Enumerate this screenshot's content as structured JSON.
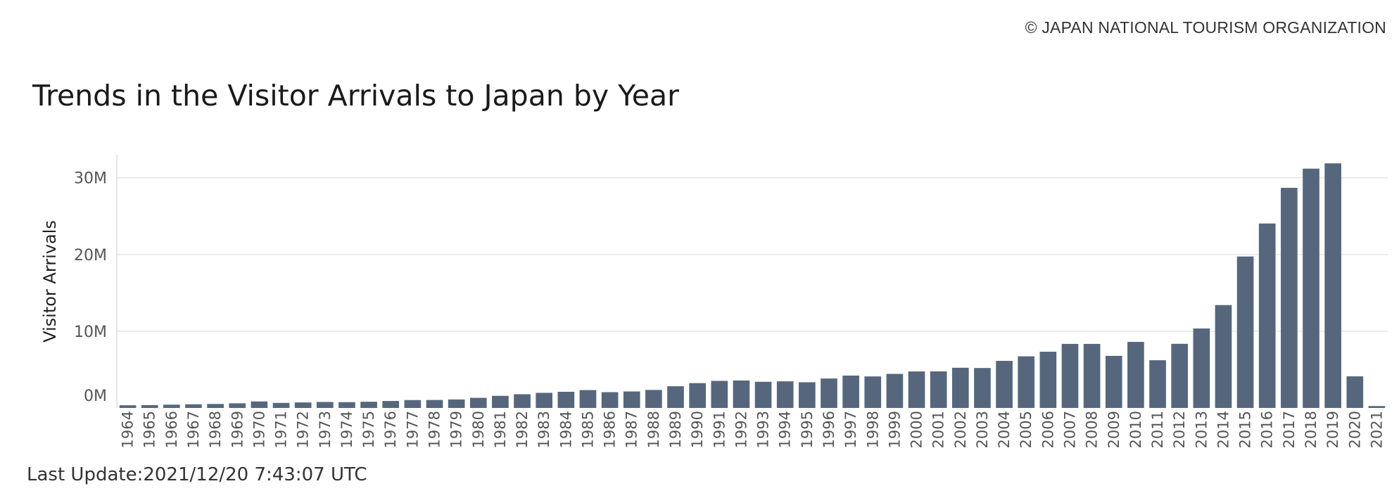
{
  "copyright": "© JAPAN NATIONAL TOURISM ORGANIZATION",
  "footer": "Last Update:2021/12/20 7:43:07 UTC",
  "colors": {
    "bar": "#56677d",
    "grid": "#e6e6e6",
    "axis": "#dddddd"
  },
  "chart_data": {
    "type": "bar",
    "title": "Trends in the Visitor Arrivals to Japan by Year",
    "xlabel": "",
    "ylabel": "Visitor Arrivals",
    "ylim": [
      0,
      33000000
    ],
    "yticks": [
      {
        "value": 0,
        "label": "0M"
      },
      {
        "value": 10000000,
        "label": "10M"
      },
      {
        "value": 20000000,
        "label": "20M"
      },
      {
        "value": 30000000,
        "label": "30M"
      }
    ],
    "grid": true,
    "categories": [
      "1964",
      "1965",
      "1966",
      "1967",
      "1968",
      "1969",
      "1970",
      "1971",
      "1972",
      "1973",
      "1974",
      "1975",
      "1976",
      "1977",
      "1978",
      "1979",
      "1980",
      "1981",
      "1982",
      "1983",
      "1984",
      "1985",
      "1986",
      "1987",
      "1988",
      "1989",
      "1990",
      "1991",
      "1992",
      "1993",
      "1994",
      "1995",
      "1996",
      "1997",
      "1998",
      "1999",
      "2000",
      "2001",
      "2002",
      "2003",
      "2004",
      "2005",
      "2006",
      "2007",
      "2008",
      "2009",
      "2010",
      "2011",
      "2012",
      "2013",
      "2014",
      "2015",
      "2016",
      "2017",
      "2018",
      "2019",
      "2020",
      "2021"
    ],
    "values": [
      350000,
      370000,
      430000,
      480000,
      520000,
      610000,
      850000,
      660000,
      720000,
      780000,
      760000,
      810000,
      910000,
      1030000,
      1040000,
      1110000,
      1320000,
      1580000,
      1790000,
      1970000,
      2110000,
      2330000,
      2060000,
      2150000,
      2350000,
      2830000,
      3240000,
      3530000,
      3580000,
      3410000,
      3470000,
      3350000,
      3840000,
      4220000,
      4110000,
      4440000,
      4760000,
      4770000,
      5240000,
      5210000,
      6140000,
      6730000,
      7330000,
      8350000,
      8350000,
      6790000,
      8610000,
      6220000,
      8360000,
      10360000,
      13410000,
      19740000,
      24040000,
      28690000,
      31190000,
      31880000,
      4120000,
      250000
    ]
  }
}
